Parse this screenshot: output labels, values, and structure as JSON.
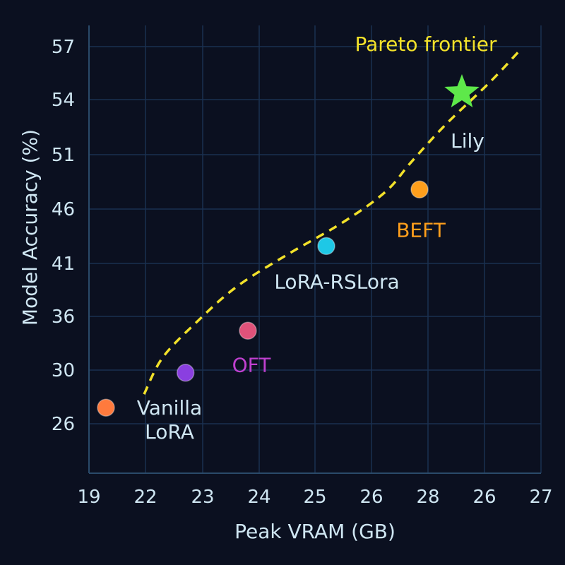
{
  "chart_data": {
    "type": "scatter",
    "title": "",
    "xlabel": "Peak VRAM (GB)",
    "ylabel": "Model Accuracy (%)",
    "x_ticks": [
      "19",
      "22",
      "23",
      "24",
      "25",
      "26",
      "28",
      "26",
      "27"
    ],
    "y_ticks": [
      "26",
      "30",
      "36",
      "41",
      "46",
      "51",
      "54",
      "57"
    ],
    "grid": true,
    "annotation": "Pareto frontier",
    "points": [
      {
        "label": "Vanilla\nLoRA",
        "x": 19.6,
        "y": 27.2,
        "marker": "circle",
        "color": "#ff7a3d",
        "label_color": "#cfe6f2"
      },
      {
        "label": "",
        "x": 22.7,
        "y": 29.8,
        "marker": "circle",
        "color": "#8a3fe0",
        "label_color": "#cfe6f2"
      },
      {
        "label": "OFT",
        "x": 23.8,
        "y": 34.4,
        "marker": "circle",
        "color": "#e0527a",
        "label_color": "#c040d0"
      },
      {
        "label": "LoRA-RSLora",
        "x": 25.2,
        "y": 42.6,
        "marker": "circle",
        "color": "#1ec8e6",
        "label_color": "#cfe6f2"
      },
      {
        "label": "BEFT",
        "x": 27.7,
        "y": 47.8,
        "marker": "circle",
        "color": "#ff9f1c",
        "label_color": "#ff9f1c"
      },
      {
        "label": "Lily",
        "x": 28.6,
        "y": 54.4,
        "marker": "star",
        "color": "#5ee84a",
        "label_color": "#cfe6f2"
      }
    ],
    "frontier": [
      [
        21.9,
        28.2
      ],
      [
        22.3,
        31.4
      ],
      [
        22.9,
        35.4
      ],
      [
        23.6,
        38.8
      ],
      [
        24.5,
        41.8
      ],
      [
        25.5,
        44.8
      ],
      [
        26.5,
        47.6
      ],
      [
        27.4,
        50.3
      ],
      [
        28.3,
        52.6
      ],
      [
        29.1,
        55.0
      ],
      [
        29.6,
        56.7
      ]
    ],
    "colors": {
      "background": "#0b1020",
      "grid": "#1a3050",
      "axis": "#2a4a6a",
      "text": "#cfe6f2",
      "frontier": "#f2e12a"
    }
  }
}
